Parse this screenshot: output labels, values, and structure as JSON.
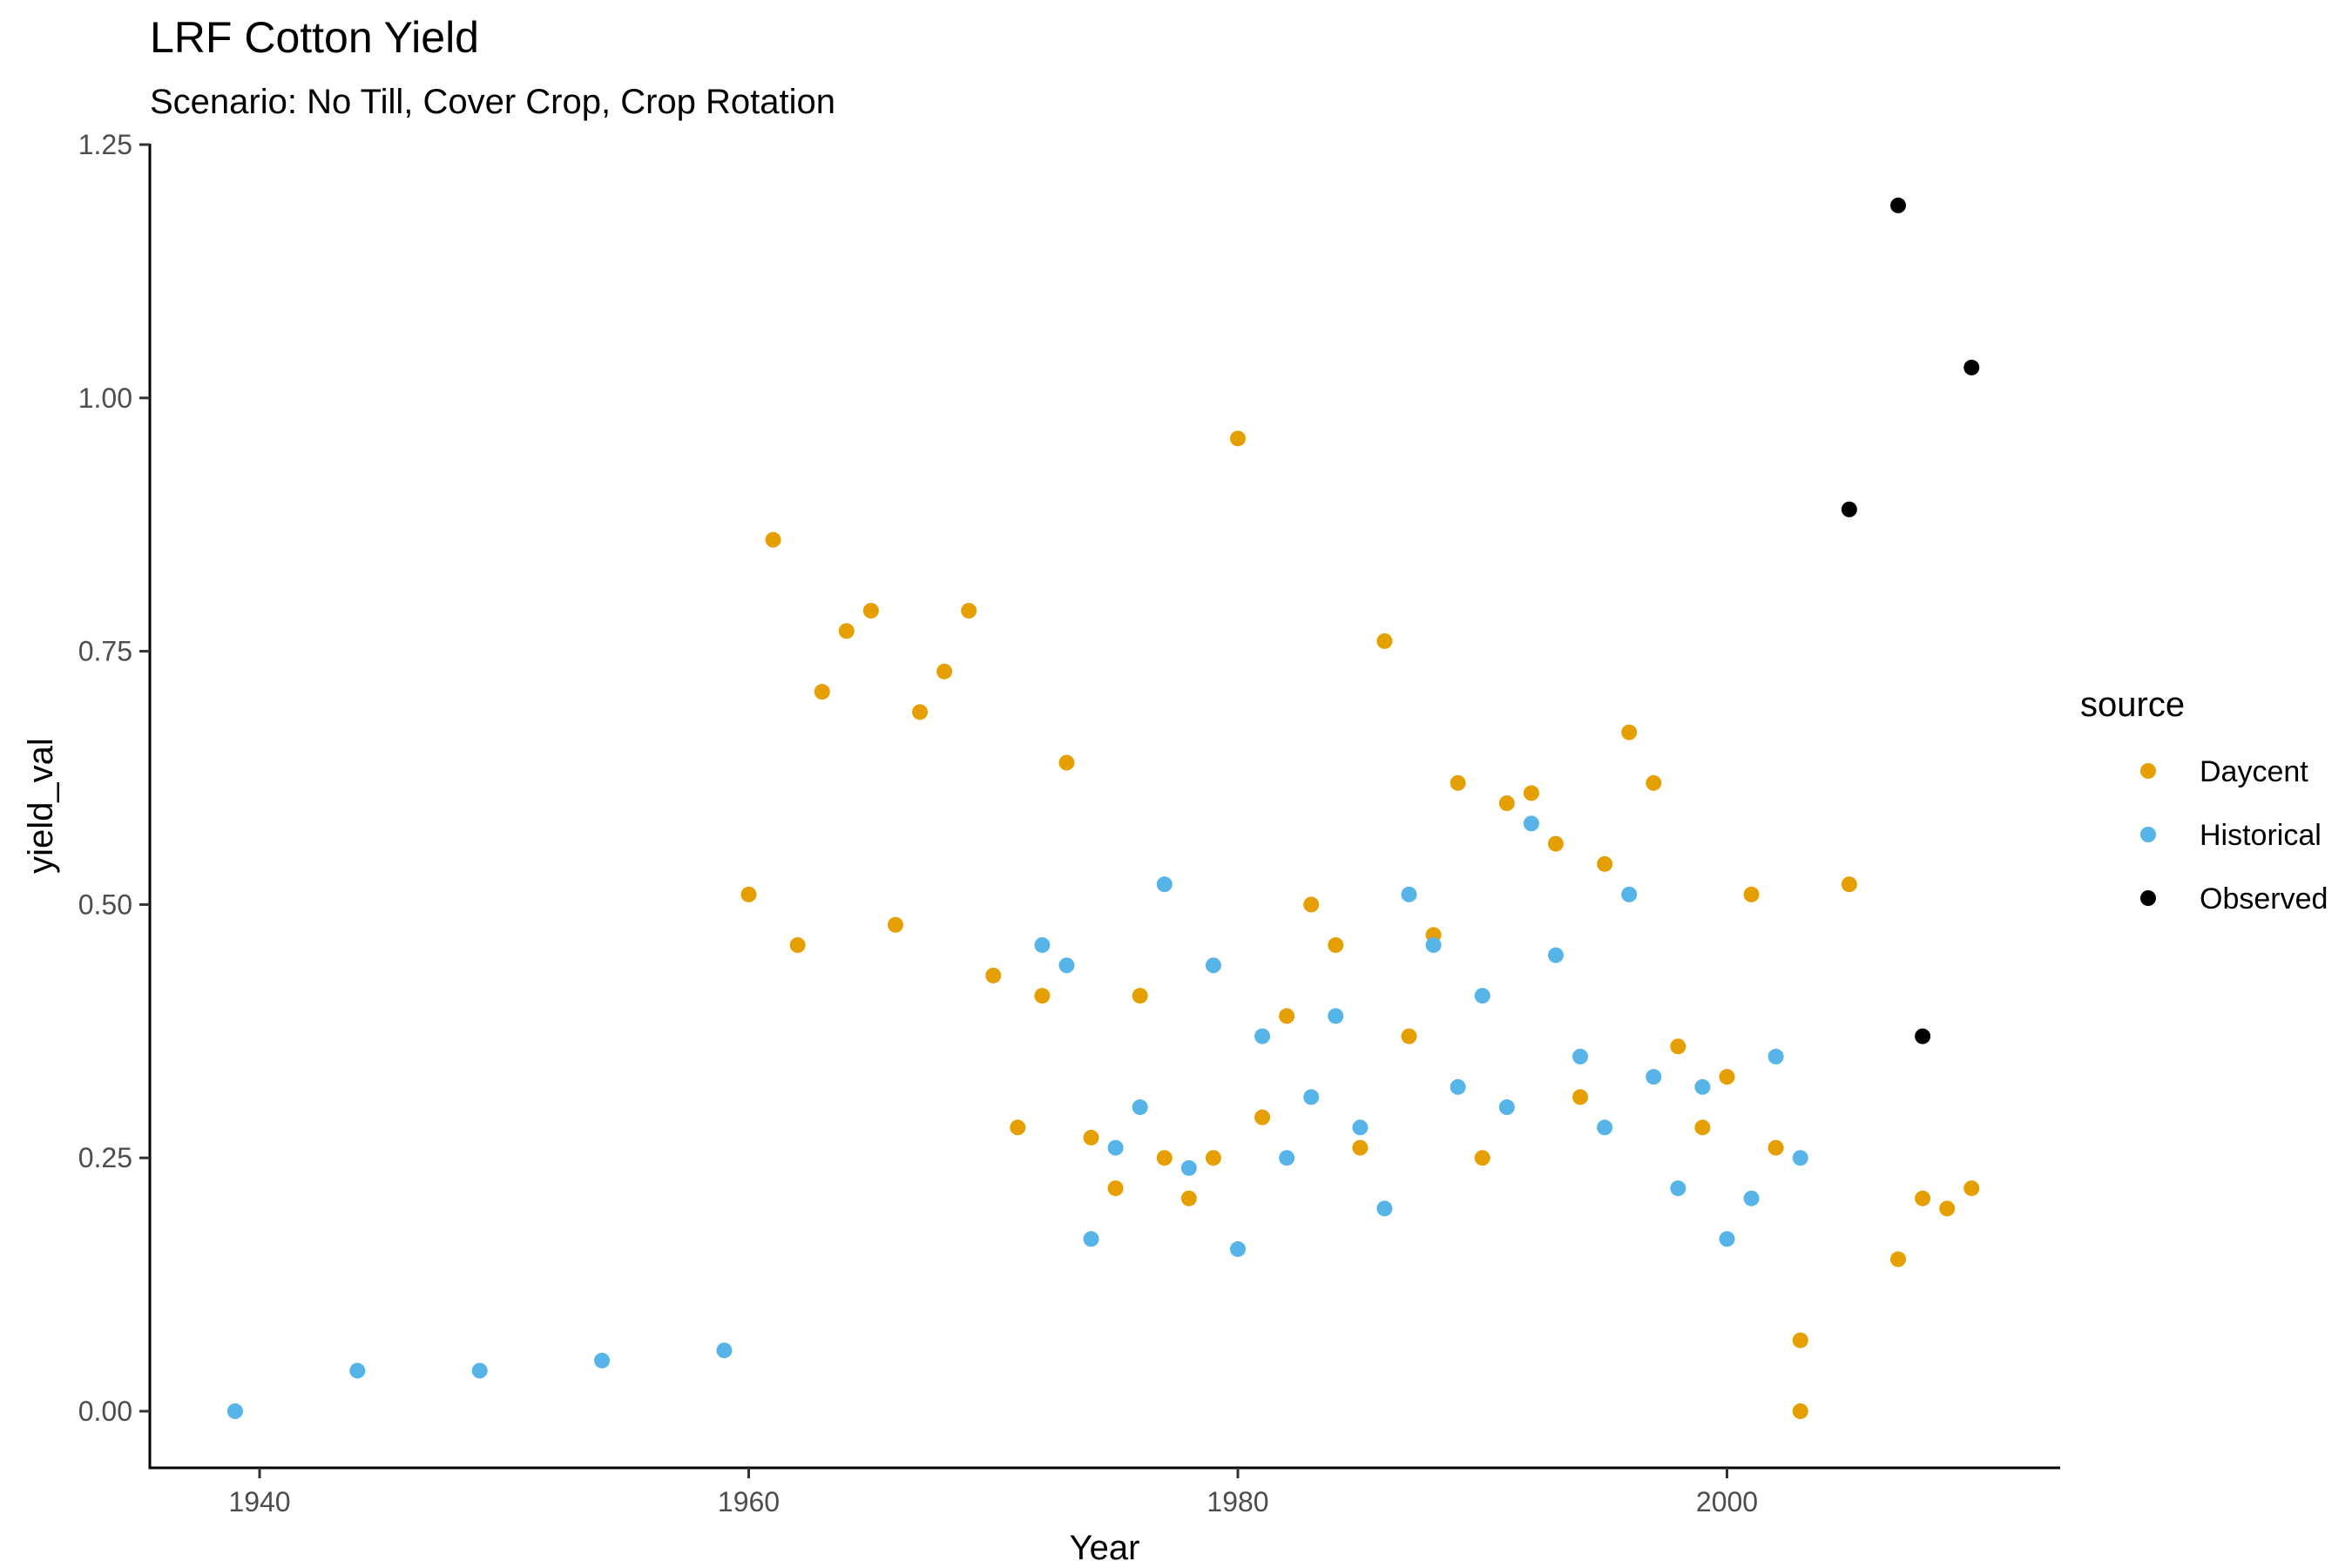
{
  "chart_data": {
    "type": "scatter",
    "title": "LRF Cotton Yield",
    "subtitle": "Scenario: No Till, Cover Crop, Crop Rotation",
    "xlabel": "Year",
    "ylabel": "yield_val",
    "xlim": [
      1935,
      2012
    ],
    "ylim": [
      -0.06,
      1.25
    ],
    "x_ticks": [
      1940,
      1960,
      1980,
      2000
    ],
    "x_tick_labels": [
      "1940",
      "1960",
      "1980",
      "2000"
    ],
    "y_ticks": [
      0,
      0.25,
      0.5,
      0.75,
      1.0,
      1.25
    ],
    "y_tick_labels": [
      "0.00",
      "0.25",
      "0.50",
      "0.75",
      "1.00",
      "1.25"
    ],
    "grid": false,
    "legend": {
      "title": "source",
      "position": "right"
    },
    "series": [
      {
        "name": "Daycent",
        "color": "#E69F00",
        "points": [
          [
            1960,
            0.51
          ],
          [
            1961,
            0.86
          ],
          [
            1962,
            0.46
          ],
          [
            1963,
            0.71
          ],
          [
            1964,
            0.77
          ],
          [
            1965,
            0.79
          ],
          [
            1966,
            0.48
          ],
          [
            1967,
            0.69
          ],
          [
            1968,
            0.73
          ],
          [
            1969,
            0.79
          ],
          [
            1970,
            0.43
          ],
          [
            1971,
            0.28
          ],
          [
            1972,
            0.41
          ],
          [
            1973,
            0.64
          ],
          [
            1974,
            0.27
          ],
          [
            1975,
            0.22
          ],
          [
            1976,
            0.41
          ],
          [
            1977,
            0.25
          ],
          [
            1978,
            0.21
          ],
          [
            1979,
            0.25
          ],
          [
            1980,
            0.96
          ],
          [
            1981,
            0.29
          ],
          [
            1982,
            0.39
          ],
          [
            1983,
            0.5
          ],
          [
            1984,
            0.46
          ],
          [
            1985,
            0.26
          ],
          [
            1986,
            0.76
          ],
          [
            1987,
            0.37
          ],
          [
            1988,
            0.47
          ],
          [
            1989,
            0.62
          ],
          [
            1990,
            0.25
          ],
          [
            1991,
            0.6
          ],
          [
            1992,
            0.61
          ],
          [
            1993,
            0.56
          ],
          [
            1994,
            0.31
          ],
          [
            1995,
            0.54
          ],
          [
            1996,
            0.67
          ],
          [
            1997,
            0.62
          ],
          [
            1998,
            0.36
          ],
          [
            1999,
            0.28
          ],
          [
            2000,
            0.33
          ],
          [
            2001,
            0.51
          ],
          [
            2002,
            0.26
          ],
          [
            2003,
            0.07
          ],
          [
            2003,
            0.0
          ],
          [
            2005,
            0.52
          ],
          [
            2007,
            0.15
          ],
          [
            2008,
            0.21
          ],
          [
            2009,
            0.2
          ],
          [
            2010,
            0.22
          ]
        ]
      },
      {
        "name": "Historical",
        "color": "#56B4E9",
        "points": [
          [
            1939,
            0.0
          ],
          [
            1944,
            0.04
          ],
          [
            1949,
            0.04
          ],
          [
            1954,
            0.05
          ],
          [
            1959,
            0.06
          ],
          [
            1972,
            0.46
          ],
          [
            1973,
            0.44
          ],
          [
            1974,
            0.17
          ],
          [
            1975,
            0.26
          ],
          [
            1976,
            0.3
          ],
          [
            1977,
            0.52
          ],
          [
            1978,
            0.24
          ],
          [
            1979,
            0.44
          ],
          [
            1980,
            0.16
          ],
          [
            1981,
            0.37
          ],
          [
            1982,
            0.25
          ],
          [
            1983,
            0.31
          ],
          [
            1984,
            0.39
          ],
          [
            1985,
            0.28
          ],
          [
            1986,
            0.2
          ],
          [
            1987,
            0.51
          ],
          [
            1988,
            0.46
          ],
          [
            1989,
            0.32
          ],
          [
            1990,
            0.41
          ],
          [
            1991,
            0.3
          ],
          [
            1992,
            0.58
          ],
          [
            1993,
            0.45
          ],
          [
            1994,
            0.35
          ],
          [
            1995,
            0.28
          ],
          [
            1996,
            0.51
          ],
          [
            1997,
            0.33
          ],
          [
            1998,
            0.22
          ],
          [
            1999,
            0.32
          ],
          [
            2000,
            0.17
          ],
          [
            2001,
            0.21
          ],
          [
            2002,
            0.35
          ],
          [
            2003,
            0.25
          ]
        ]
      },
      {
        "name": "Observed",
        "color": "#000000",
        "points": [
          [
            2005,
            0.89
          ],
          [
            2007,
            1.19
          ],
          [
            2008,
            0.37
          ],
          [
            2010,
            1.03
          ]
        ]
      }
    ]
  }
}
